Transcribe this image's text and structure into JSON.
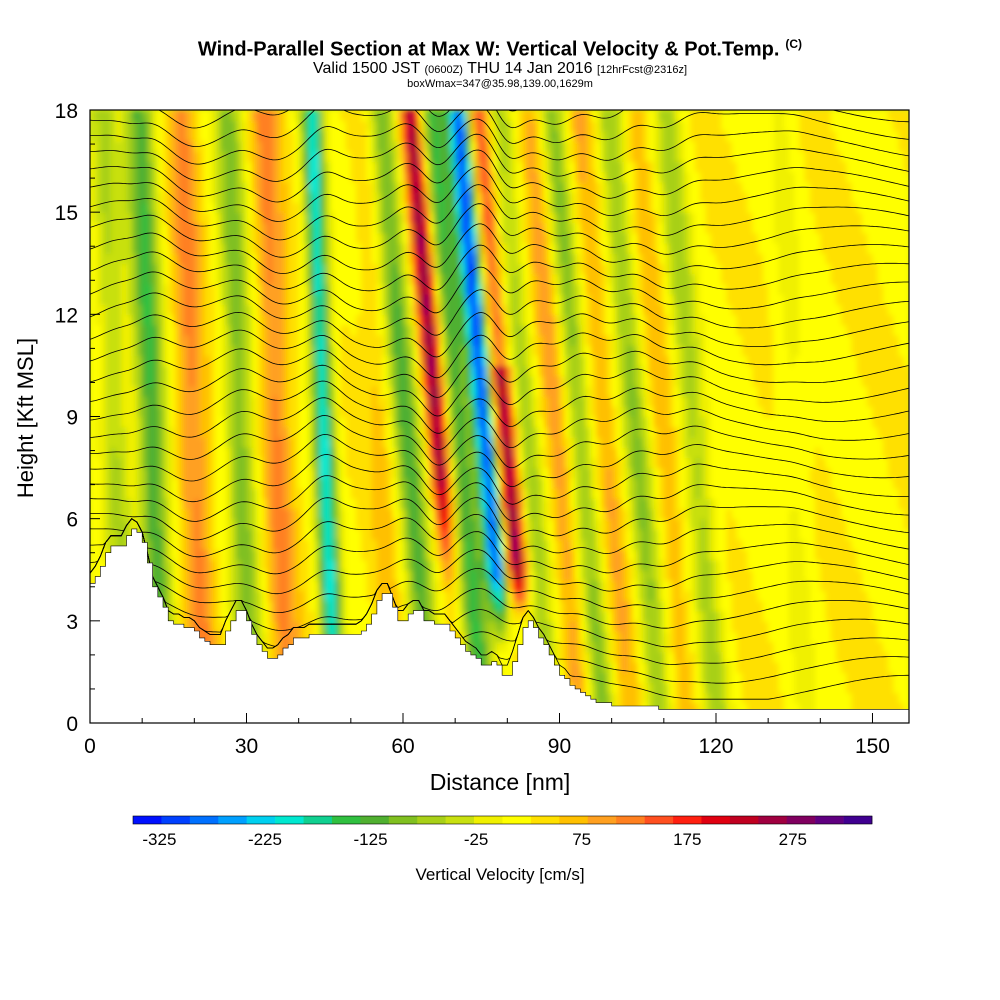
{
  "header": {
    "title": "Wind-Parallel Section at Max W: Vertical Velocity & Pot.Temp.",
    "title_mark": "(C)",
    "subtitle_valid": "Valid 1500 JST",
    "subtitle_z": "(0600Z)",
    "subtitle_date": "THU 14 Jan 2016",
    "subtitle_fcst": "[12hrFcst@2316z]",
    "boxinfo": "boxWmax=347@35.98,139.00,1629m"
  },
  "chart_data": {
    "type": "heatmap",
    "title": "Wind-Parallel Section at Max W: Vertical Velocity & Pot.Temp.",
    "xlabel": "Distance [nm]",
    "ylabel": "Height [Kft MSL]",
    "xlim": [
      0,
      157
    ],
    "ylim": [
      0,
      18
    ],
    "xticks": [
      0,
      30,
      60,
      90,
      120,
      150
    ],
    "yticks": [
      0,
      3,
      6,
      9,
      12,
      15,
      18
    ],
    "colorbar": {
      "label": "Vertical Velocity [cm/s]",
      "ticks": [
        -325,
        -225,
        -125,
        -25,
        75,
        175,
        275
      ],
      "range": [
        -350,
        350
      ],
      "colors": [
        "#0010ff",
        "#0040ff",
        "#0070ff",
        "#00a0ff",
        "#00d0f0",
        "#00e8d0",
        "#10d090",
        "#30c040",
        "#50b030",
        "#80c020",
        "#a8d018",
        "#c8e010",
        "#f0f000",
        "#ffff00",
        "#ffe000",
        "#ffc000",
        "#ffa020",
        "#ff8020",
        "#ff5020",
        "#ff2010",
        "#e00010",
        "#c00020",
        "#a00040",
        "#800060",
        "#600080",
        "#400090"
      ]
    },
    "w_features_cm_s": [
      {
        "x": 5,
        "w": -80
      },
      {
        "x": 12,
        "w": -160
      },
      {
        "x": 20,
        "w": 90
      },
      {
        "x": 29,
        "w": -120
      },
      {
        "x": 36,
        "w": 90
      },
      {
        "x": 45,
        "w": -230
      },
      {
        "x": 56,
        "w": 40
      },
      {
        "x": 61,
        "w": -150
      },
      {
        "x": 67,
        "w": 260
      },
      {
        "x": 71,
        "w": -160
      },
      {
        "x": 76,
        "w": -330
      },
      {
        "x": 80,
        "w": 260
      },
      {
        "x": 84,
        "w": -90
      },
      {
        "x": 90,
        "w": 80
      },
      {
        "x": 94,
        "w": -120
      },
      {
        "x": 99,
        "w": 60
      },
      {
        "x": 105,
        "w": -110
      },
      {
        "x": 110,
        "w": 50
      },
      {
        "x": 116,
        "w": -90
      },
      {
        "x": 135,
        "w": -30
      }
    ],
    "terrain_kft": {
      "x": [
        0,
        1,
        2,
        3,
        4,
        5,
        6,
        7,
        8,
        9,
        10,
        11,
        12,
        13,
        14,
        15,
        16,
        17,
        18,
        19,
        20,
        21,
        22,
        23,
        24,
        25,
        26,
        27,
        28,
        29,
        30,
        31,
        32,
        33,
        34,
        35,
        36,
        37,
        38,
        39,
        40,
        41,
        42,
        43,
        44,
        45,
        46,
        47,
        48,
        49,
        50,
        51,
        52,
        53,
        54,
        55,
        56,
        57,
        58,
        59,
        60,
        61,
        62,
        63,
        64,
        65,
        66,
        67,
        68,
        69,
        70,
        71,
        72,
        73,
        74,
        75,
        76,
        77,
        78,
        79,
        80,
        81,
        82,
        83,
        84,
        85,
        86,
        87,
        88,
        89,
        90,
        91,
        92,
        93,
        94,
        95,
        96,
        97,
        98,
        99,
        100,
        101,
        102,
        103,
        104,
        105,
        106,
        107,
        108,
        109,
        110,
        111,
        112,
        113,
        114,
        115,
        116,
        117,
        118,
        119,
        120,
        121,
        122,
        123,
        124,
        125,
        126,
        127,
        128,
        129,
        130,
        131,
        132,
        133,
        134,
        135,
        136,
        137,
        138,
        139,
        140,
        141,
        142,
        143,
        144,
        145,
        146,
        147,
        148,
        149,
        150,
        151,
        152,
        153,
        154,
        155,
        156,
        157
      ],
      "y": [
        4.1,
        4.3,
        4.6,
        5.0,
        5.2,
        5.2,
        5.2,
        5.5,
        5.7,
        5.6,
        5.3,
        4.7,
        4.0,
        3.7,
        3.4,
        3.0,
        2.9,
        2.9,
        2.8,
        2.8,
        2.7,
        2.5,
        2.4,
        2.3,
        2.3,
        2.3,
        2.7,
        3.0,
        3.3,
        3.3,
        3.0,
        2.6,
        2.3,
        2.1,
        1.9,
        1.9,
        2.0,
        2.2,
        2.3,
        2.5,
        2.5,
        2.5,
        2.6,
        2.6,
        2.6,
        2.6,
        2.6,
        2.6,
        2.6,
        2.6,
        2.6,
        2.6,
        2.7,
        2.9,
        3.2,
        3.6,
        3.8,
        3.8,
        3.4,
        3.0,
        3.0,
        3.2,
        3.3,
        3.3,
        3.0,
        3.0,
        2.9,
        2.9,
        2.9,
        2.7,
        2.5,
        2.3,
        2.1,
        2.0,
        1.9,
        1.7,
        1.7,
        1.8,
        1.7,
        1.4,
        1.4,
        1.8,
        2.3,
        2.8,
        3.0,
        2.8,
        2.5,
        2.3,
        2.0,
        1.7,
        1.4,
        1.3,
        1.1,
        1.0,
        0.9,
        0.8,
        0.7,
        0.6,
        0.6,
        0.6,
        0.5,
        0.5,
        0.5,
        0.5,
        0.5,
        0.5,
        0.5,
        0.5,
        0.5,
        0.4,
        0.4,
        0.4,
        0.4,
        0.4,
        0.4,
        0.4,
        0.4,
        0.4,
        0.4,
        0.4,
        0.4,
        0.4,
        0.4,
        0.4,
        0.4,
        0.4,
        0.4,
        0.4,
        0.4,
        0.4,
        0.4,
        0.4,
        0.4,
        0.4,
        0.4,
        0.4,
        0.4,
        0.4,
        0.4,
        0.4,
        0.4,
        0.4,
        0.4,
        0.4,
        0.4,
        0.4,
        0.4,
        0.4,
        0.4,
        0.4,
        0.4,
        0.4,
        0.4,
        0.4,
        0.4,
        0.4,
        0.4,
        0.4
      ]
    },
    "theta_contours": "thin black isentropes, approx 1 K spacing, perturbed by mountain waves"
  }
}
